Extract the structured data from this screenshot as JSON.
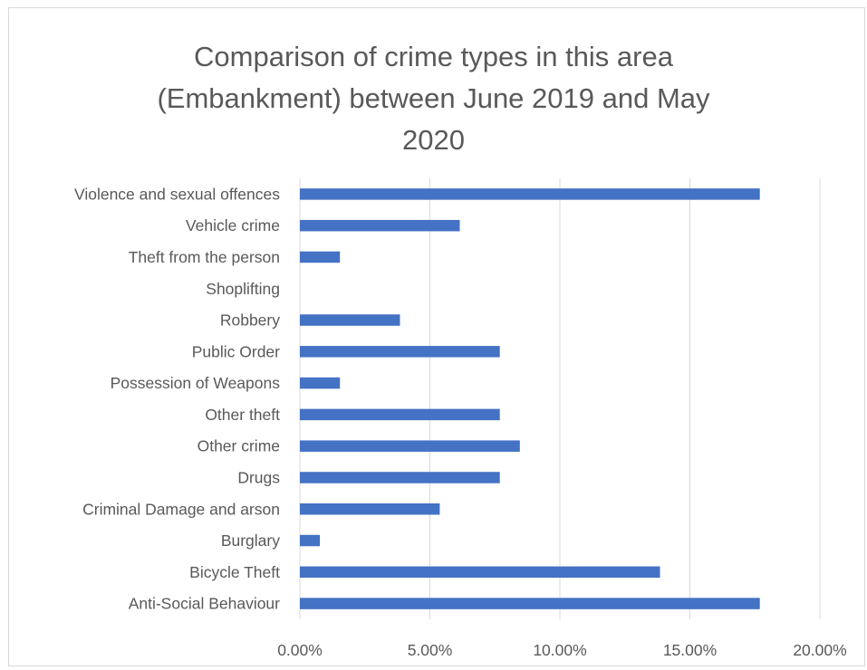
{
  "chart_data": {
    "type": "bar",
    "orientation": "horizontal",
    "title_lines": [
      "Comparison of crime types in this area",
      "(Embankment) between June 2019 and May",
      "2020"
    ],
    "categories": [
      "Violence and sexual offences",
      "Vehicle crime",
      "Theft from the person",
      "Shoplifting",
      "Robbery",
      "Public Order",
      "Possession of Weapons",
      "Other theft",
      "Other crime",
      "Drugs",
      "Criminal Damage and arson",
      "Burglary",
      "Bicycle Theft",
      "Anti-Social Behaviour"
    ],
    "values": [
      17.69,
      6.15,
      1.54,
      0.0,
      3.85,
      7.69,
      1.54,
      7.69,
      8.46,
      7.69,
      5.38,
      0.77,
      13.85,
      17.69
    ],
    "xlim": [
      0,
      20
    ],
    "x_ticks": [
      "0.00%",
      "5.00%",
      "10.00%",
      "15.00%",
      "20.00%"
    ],
    "x_tick_values": [
      0,
      5,
      10,
      15,
      20
    ],
    "bar_color": "#4472c4",
    "grid": true
  }
}
